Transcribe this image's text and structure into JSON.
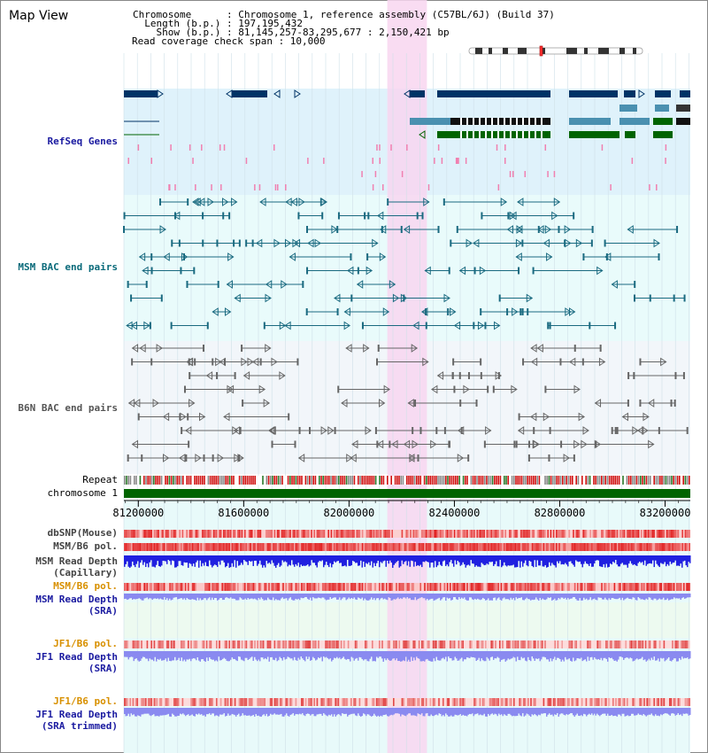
{
  "view_title": "Map View",
  "info": {
    "chromosome": "Chromosome      : Chromosome 1, reference assembly (C57BL/6J) (Build 37)",
    "length": "  Length (b.p.) : 197,195,432",
    "show": "    Show (b.p.) : 81,145,257-83,295,677 : 2,150,421 bp",
    "coverage": "Read coverage check span : 10,000"
  },
  "tracks": {
    "refseq": "RefSeq Genes",
    "msm_bac": "MSM BAC end pairs",
    "b6n_bac": "B6N BAC end pairs",
    "repeat": "Repeat",
    "chromosome": "chromosome 1",
    "dbsnp": "dbSNP(Mouse)",
    "msm_b6_pol_1": "MSM/B6 pol.",
    "msm_depth_cap_1": "MSM Read Depth",
    "msm_depth_cap_2": "(Capillary)",
    "msm_b6_pol_2": "MSM/B6 pol.",
    "msm_depth_sra_1": "MSM Read Depth",
    "msm_depth_sra_2": "(SRA)",
    "jf1_b6_pol_1": "JF1/B6 pol.",
    "jf1_depth_sra_1": "JF1 Read Depth",
    "jf1_depth_sra_2": "(SRA)",
    "jf1_b6_pol_2": "JF1/B6 pol.",
    "jf1_depth_trim_1": "JF1 Read Depth",
    "jf1_depth_trim_2": "(SRA trimmed)"
  },
  "axis": {
    "ticks": [
      "81200000",
      "81600000",
      "82000000",
      "82400000",
      "82800000",
      "83200000"
    ],
    "start_bp": 81145257,
    "end_bp": 83295677,
    "highlight_start_bp": 82145257,
    "highlight_end_bp": 82295677
  },
  "colors": {
    "refseq_bg": "#dff2fb",
    "msm_bg": "#e9fbfb",
    "b6n_bg": "#f2f6fa",
    "highlight": "#f8d6f0",
    "gene_dark": "#003366",
    "gene_mid": "#4a90b0",
    "gene_green": "#006400",
    "bac_teal": "#1a6a80",
    "bac_grey": "#666666",
    "chromosome": "#006400",
    "depth_blue": "#2020e0",
    "depth_light": "#8a8af0"
  }
}
